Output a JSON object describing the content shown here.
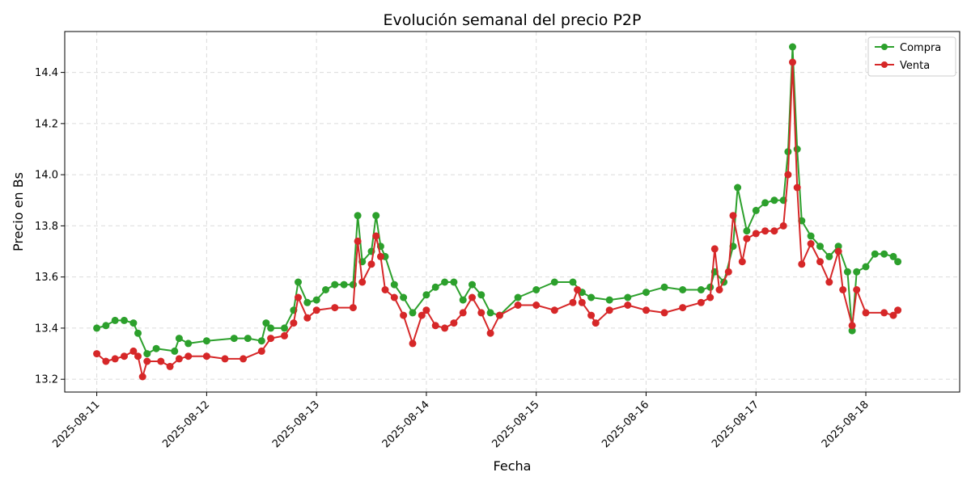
{
  "chart_data": {
    "type": "line",
    "title": "Evolución semanal del precio P2P",
    "xlabel": "Fecha",
    "ylabel": "Precio en Bs",
    "x_type": "datetime",
    "xlim": [
      "2025-08-10T17:00",
      "2025-08-18T20:30"
    ],
    "ylim": [
      13.15,
      14.56
    ],
    "x_ticks": [
      "2025-08-11",
      "2025-08-12",
      "2025-08-13",
      "2025-08-14",
      "2025-08-15",
      "2025-08-16",
      "2025-08-17",
      "2025-08-18"
    ],
    "y_ticks": [
      "13.2",
      "13.4",
      "13.6",
      "13.8",
      "14.0",
      "14.2",
      "14.4"
    ],
    "grid": true,
    "legend_position": "top-right",
    "series": [
      {
        "name": "Compra",
        "color": "#2ca02c",
        "points": [
          [
            "2025-08-11T00:00",
            13.4
          ],
          [
            "2025-08-11T02:00",
            13.41
          ],
          [
            "2025-08-11T04:00",
            13.43
          ],
          [
            "2025-08-11T06:00",
            13.43
          ],
          [
            "2025-08-11T08:00",
            13.42
          ],
          [
            "2025-08-11T09:00",
            13.38
          ],
          [
            "2025-08-11T11:00",
            13.3
          ],
          [
            "2025-08-11T13:00",
            13.32
          ],
          [
            "2025-08-11T17:00",
            13.31
          ],
          [
            "2025-08-11T18:00",
            13.36
          ],
          [
            "2025-08-11T20:00",
            13.34
          ],
          [
            "2025-08-12T00:00",
            13.35
          ],
          [
            "2025-08-12T06:00",
            13.36
          ],
          [
            "2025-08-12T09:00",
            13.36
          ],
          [
            "2025-08-12T12:00",
            13.35
          ],
          [
            "2025-08-12T13:00",
            13.42
          ],
          [
            "2025-08-12T14:00",
            13.4
          ],
          [
            "2025-08-12T17:00",
            13.4
          ],
          [
            "2025-08-12T19:00",
            13.47
          ],
          [
            "2025-08-12T20:00",
            13.58
          ],
          [
            "2025-08-12T22:00",
            13.5
          ],
          [
            "2025-08-13T00:00",
            13.51
          ],
          [
            "2025-08-13T02:00",
            13.55
          ],
          [
            "2025-08-13T04:00",
            13.57
          ],
          [
            "2025-08-13T06:00",
            13.57
          ],
          [
            "2025-08-13T08:00",
            13.57
          ],
          [
            "2025-08-13T09:00",
            13.84
          ],
          [
            "2025-08-13T10:00",
            13.66
          ],
          [
            "2025-08-13T12:00",
            13.7
          ],
          [
            "2025-08-13T13:00",
            13.84
          ],
          [
            "2025-08-13T14:00",
            13.72
          ],
          [
            "2025-08-13T15:00",
            13.68
          ],
          [
            "2025-08-13T17:00",
            13.57
          ],
          [
            "2025-08-13T19:00",
            13.52
          ],
          [
            "2025-08-13T21:00",
            13.46
          ],
          [
            "2025-08-14T00:00",
            13.53
          ],
          [
            "2025-08-14T02:00",
            13.56
          ],
          [
            "2025-08-14T04:00",
            13.58
          ],
          [
            "2025-08-14T06:00",
            13.58
          ],
          [
            "2025-08-14T08:00",
            13.51
          ],
          [
            "2025-08-14T10:00",
            13.57
          ],
          [
            "2025-08-14T12:00",
            13.53
          ],
          [
            "2025-08-14T14:00",
            13.46
          ],
          [
            "2025-08-14T16:00",
            13.45
          ],
          [
            "2025-08-14T20:00",
            13.52
          ],
          [
            "2025-08-15T00:00",
            13.55
          ],
          [
            "2025-08-15T04:00",
            13.58
          ],
          [
            "2025-08-15T08:00",
            13.58
          ],
          [
            "2025-08-15T10:00",
            13.54
          ],
          [
            "2025-08-15T12:00",
            13.52
          ],
          [
            "2025-08-15T16:00",
            13.51
          ],
          [
            "2025-08-15T20:00",
            13.52
          ],
          [
            "2025-08-16T00:00",
            13.54
          ],
          [
            "2025-08-16T04:00",
            13.56
          ],
          [
            "2025-08-16T08:00",
            13.55
          ],
          [
            "2025-08-16T12:00",
            13.55
          ],
          [
            "2025-08-16T14:00",
            13.56
          ],
          [
            "2025-08-16T15:00",
            13.62
          ],
          [
            "2025-08-16T17:00",
            13.58
          ],
          [
            "2025-08-16T19:00",
            13.72
          ],
          [
            "2025-08-16T20:00",
            13.95
          ],
          [
            "2025-08-16T22:00",
            13.78
          ],
          [
            "2025-08-17T00:00",
            13.86
          ],
          [
            "2025-08-17T02:00",
            13.89
          ],
          [
            "2025-08-17T04:00",
            13.9
          ],
          [
            "2025-08-17T06:00",
            13.9
          ],
          [
            "2025-08-17T07:00",
            14.09
          ],
          [
            "2025-08-17T08:00",
            14.5
          ],
          [
            "2025-08-17T09:00",
            14.1
          ],
          [
            "2025-08-17T10:00",
            13.82
          ],
          [
            "2025-08-17T12:00",
            13.76
          ],
          [
            "2025-08-17T14:00",
            13.72
          ],
          [
            "2025-08-17T16:00",
            13.68
          ],
          [
            "2025-08-17T18:00",
            13.72
          ],
          [
            "2025-08-17T20:00",
            13.62
          ],
          [
            "2025-08-17T21:00",
            13.39
          ],
          [
            "2025-08-17T22:00",
            13.62
          ],
          [
            "2025-08-18T00:00",
            13.64
          ],
          [
            "2025-08-18T02:00",
            13.69
          ],
          [
            "2025-08-18T04:00",
            13.69
          ],
          [
            "2025-08-18T06:00",
            13.68
          ],
          [
            "2025-08-18T07:00",
            13.66
          ]
        ]
      },
      {
        "name": "Venta",
        "color": "#d62728",
        "points": [
          [
            "2025-08-11T00:00",
            13.3
          ],
          [
            "2025-08-11T02:00",
            13.27
          ],
          [
            "2025-08-11T04:00",
            13.28
          ],
          [
            "2025-08-11T06:00",
            13.29
          ],
          [
            "2025-08-11T08:00",
            13.31
          ],
          [
            "2025-08-11T09:00",
            13.29
          ],
          [
            "2025-08-11T10:00",
            13.21
          ],
          [
            "2025-08-11T11:00",
            13.27
          ],
          [
            "2025-08-11T14:00",
            13.27
          ],
          [
            "2025-08-11T16:00",
            13.25
          ],
          [
            "2025-08-11T18:00",
            13.28
          ],
          [
            "2025-08-11T20:00",
            13.29
          ],
          [
            "2025-08-12T00:00",
            13.29
          ],
          [
            "2025-08-12T04:00",
            13.28
          ],
          [
            "2025-08-12T08:00",
            13.28
          ],
          [
            "2025-08-12T12:00",
            13.31
          ],
          [
            "2025-08-12T14:00",
            13.36
          ],
          [
            "2025-08-12T17:00",
            13.37
          ],
          [
            "2025-08-12T19:00",
            13.42
          ],
          [
            "2025-08-12T20:00",
            13.52
          ],
          [
            "2025-08-12T22:00",
            13.44
          ],
          [
            "2025-08-13T00:00",
            13.47
          ],
          [
            "2025-08-13T04:00",
            13.48
          ],
          [
            "2025-08-13T08:00",
            13.48
          ],
          [
            "2025-08-13T09:00",
            13.74
          ],
          [
            "2025-08-13T10:00",
            13.58
          ],
          [
            "2025-08-13T12:00",
            13.65
          ],
          [
            "2025-08-13T13:00",
            13.76
          ],
          [
            "2025-08-13T14:00",
            13.68
          ],
          [
            "2025-08-13T15:00",
            13.55
          ],
          [
            "2025-08-13T17:00",
            13.52
          ],
          [
            "2025-08-13T19:00",
            13.45
          ],
          [
            "2025-08-13T21:00",
            13.34
          ],
          [
            "2025-08-13T23:00",
            13.45
          ],
          [
            "2025-08-14T00:00",
            13.47
          ],
          [
            "2025-08-14T02:00",
            13.41
          ],
          [
            "2025-08-14T04:00",
            13.4
          ],
          [
            "2025-08-14T06:00",
            13.42
          ],
          [
            "2025-08-14T08:00",
            13.46
          ],
          [
            "2025-08-14T10:00",
            13.52
          ],
          [
            "2025-08-14T12:00",
            13.46
          ],
          [
            "2025-08-14T14:00",
            13.38
          ],
          [
            "2025-08-14T16:00",
            13.45
          ],
          [
            "2025-08-14T20:00",
            13.49
          ],
          [
            "2025-08-15T00:00",
            13.49
          ],
          [
            "2025-08-15T04:00",
            13.47
          ],
          [
            "2025-08-15T08:00",
            13.5
          ],
          [
            "2025-08-15T09:00",
            13.55
          ],
          [
            "2025-08-15T10:00",
            13.5
          ],
          [
            "2025-08-15T12:00",
            13.45
          ],
          [
            "2025-08-15T13:00",
            13.42
          ],
          [
            "2025-08-15T16:00",
            13.47
          ],
          [
            "2025-08-15T20:00",
            13.49
          ],
          [
            "2025-08-16T00:00",
            13.47
          ],
          [
            "2025-08-16T04:00",
            13.46
          ],
          [
            "2025-08-16T08:00",
            13.48
          ],
          [
            "2025-08-16T12:00",
            13.5
          ],
          [
            "2025-08-16T14:00",
            13.52
          ],
          [
            "2025-08-16T15:00",
            13.71
          ],
          [
            "2025-08-16T16:00",
            13.55
          ],
          [
            "2025-08-16T18:00",
            13.62
          ],
          [
            "2025-08-16T19:00",
            13.84
          ],
          [
            "2025-08-16T21:00",
            13.66
          ],
          [
            "2025-08-16T22:00",
            13.75
          ],
          [
            "2025-08-17T00:00",
            13.77
          ],
          [
            "2025-08-17T02:00",
            13.78
          ],
          [
            "2025-08-17T04:00",
            13.78
          ],
          [
            "2025-08-17T06:00",
            13.8
          ],
          [
            "2025-08-17T07:00",
            14.0
          ],
          [
            "2025-08-17T08:00",
            14.44
          ],
          [
            "2025-08-17T09:00",
            13.95
          ],
          [
            "2025-08-17T10:00",
            13.65
          ],
          [
            "2025-08-17T12:00",
            13.73
          ],
          [
            "2025-08-17T14:00",
            13.66
          ],
          [
            "2025-08-17T16:00",
            13.58
          ],
          [
            "2025-08-17T18:00",
            13.7
          ],
          [
            "2025-08-17T19:00",
            13.55
          ],
          [
            "2025-08-17T21:00",
            13.41
          ],
          [
            "2025-08-17T22:00",
            13.55
          ],
          [
            "2025-08-18T00:00",
            13.46
          ],
          [
            "2025-08-18T04:00",
            13.46
          ],
          [
            "2025-08-18T06:00",
            13.45
          ],
          [
            "2025-08-18T07:00",
            13.47
          ]
        ]
      }
    ]
  }
}
